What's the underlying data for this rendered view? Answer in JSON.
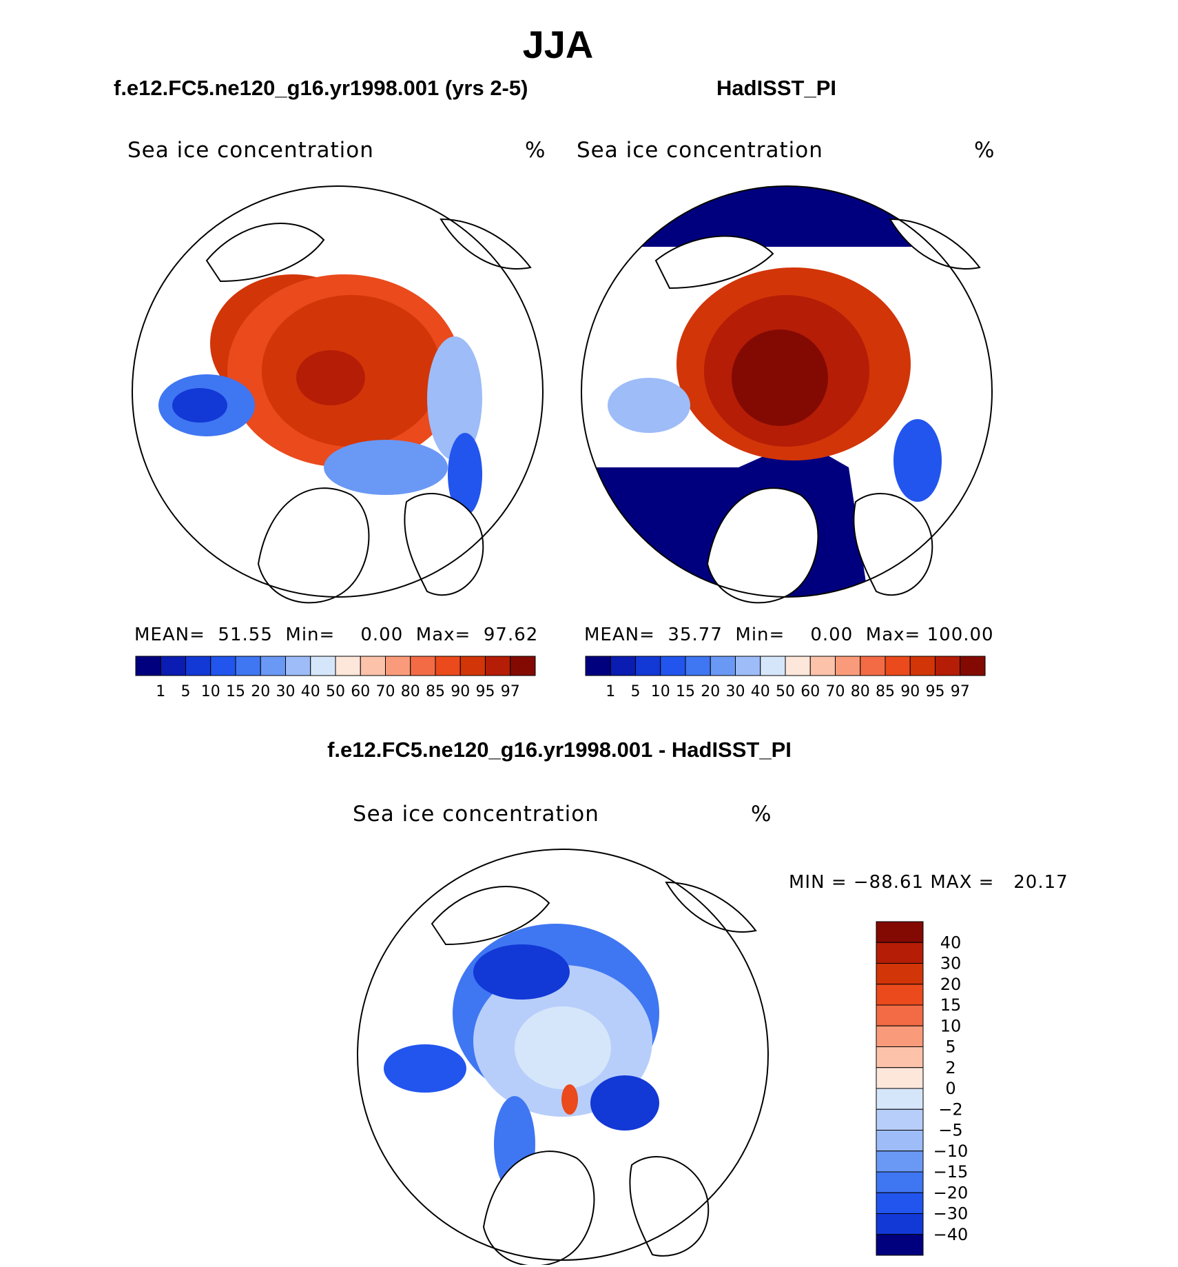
{
  "figure": {
    "season": "JJA",
    "model_title": "f.e12.FC5.ne120_g16.yr1998.001 (yrs 2-5)",
    "obs_title": "HadISST_PI",
    "diff_title": "f.e12.FC5.ne120_g16.yr1998.001 - HadISST_PI"
  },
  "palette": {
    "abs": [
      "#00007f",
      "#0a1cb2",
      "#1238d6",
      "#2255ee",
      "#3f76f2",
      "#6a98f5",
      "#9dbcf8",
      "#d6e6fa",
      "#fde6da",
      "#fcc2aa",
      "#f99b7a",
      "#f26b45",
      "#ea4a1c",
      "#d23508",
      "#b51d06",
      "#830a03"
    ],
    "diff": [
      "#830a03",
      "#b51d06",
      "#d23508",
      "#ea4a1c",
      "#f26b45",
      "#f99b7a",
      "#fcc2aa",
      "#fde6da",
      "#d6e6fa",
      "#b7cefa",
      "#9dbcf8",
      "#6a98f5",
      "#3f76f2",
      "#2255ee",
      "#1238d6",
      "#00007f"
    ]
  },
  "chart_data": [
    {
      "type": "heatmap",
      "projection": "north-polar-stereographic",
      "title": "Sea ice concentration",
      "units": "%",
      "stats": {
        "mean_label": "MEAN=",
        "mean": "51.55",
        "min_label": "Min=",
        "min": "0.00",
        "max_label": "Max=",
        "max": "97.62"
      },
      "colorbar_labels": [
        "1",
        "5",
        "10",
        "15",
        "20",
        "30",
        "40",
        "50",
        "60",
        "70",
        "80",
        "85",
        "90",
        "95",
        "97"
      ],
      "colorbar_orientation": "horizontal"
    },
    {
      "type": "heatmap",
      "projection": "north-polar-stereographic",
      "title": "Sea ice concentration",
      "units": "%",
      "stats": {
        "mean_label": "MEAN=",
        "mean": "35.77",
        "min_label": "Min=",
        "min": "0.00",
        "max_label": "Max=",
        "max": "100.00"
      },
      "colorbar_labels": [
        "1",
        "5",
        "10",
        "15",
        "20",
        "30",
        "40",
        "50",
        "60",
        "70",
        "80",
        "85",
        "90",
        "95",
        "97"
      ],
      "colorbar_orientation": "horizontal"
    },
    {
      "type": "heatmap",
      "projection": "north-polar-stereographic",
      "title": "Sea ice concentration",
      "units": "%",
      "stats": {
        "min_label": "MIN =",
        "min": "−88.61",
        "max_label": "MAX =",
        "max": "20.17"
      },
      "colorbar_labels": [
        "40",
        "30",
        "20",
        "15",
        "10",
        "5",
        "2",
        "0",
        "−2",
        "−5",
        "−10",
        "−15",
        "−20",
        "−30",
        "−40"
      ],
      "colorbar_orientation": "vertical"
    }
  ]
}
